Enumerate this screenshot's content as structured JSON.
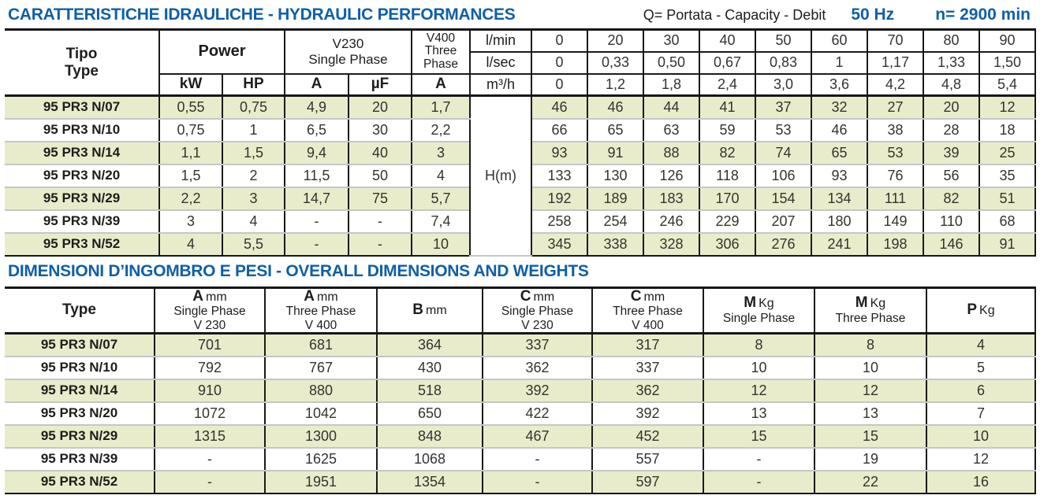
{
  "header": {
    "title": "CARATTERISTICHE IDRAULICHE - HYDRAULIC PERFORMANCES",
    "capacity_note": "Q= Portata - Capacity - Debit",
    "frequency": "50 Hz",
    "speed": "n= 2900 min"
  },
  "colors": {
    "accent_blue": "#0f5fa8",
    "row_green": "#e9ecca",
    "border_dark": "#1a1a1a"
  },
  "hydraulic_table": {
    "headers": {
      "tipo": "Tipo",
      "type": "Type",
      "power": "Power",
      "kw": "kW",
      "hp": "HP",
      "v230_line1": "V230",
      "v230_line2": "Single Phase",
      "amp": "A",
      "uf": "µF",
      "v400_line1": "V400",
      "v400_line2": "Three",
      "v400_line3": "Phase",
      "v400_amp": "A",
      "head_label": "H(m)",
      "unit_lmin": "l/min",
      "unit_lsec": "l/sec",
      "unit_m3h": "m³/h"
    },
    "flow": {
      "lmin": [
        "0",
        "20",
        "30",
        "40",
        "50",
        "60",
        "70",
        "80",
        "90"
      ],
      "lsec": [
        "0",
        "0,33",
        "0,50",
        "0,67",
        "0,83",
        "1",
        "1,17",
        "1,33",
        "1,50"
      ],
      "m3h": [
        "0",
        "1,2",
        "1,8",
        "2,4",
        "3,0",
        "3,6",
        "4,2",
        "4,8",
        "5,4"
      ]
    },
    "rows": [
      {
        "type": "95 PR3 N/07",
        "motor": [
          "0,55",
          "0,75",
          "4,9",
          "20",
          "1,7"
        ],
        "heads": [
          "46",
          "46",
          "44",
          "41",
          "37",
          "32",
          "27",
          "20",
          "12"
        ]
      },
      {
        "type": "95 PR3 N/10",
        "motor": [
          "0,75",
          "1",
          "6,5",
          "30",
          "2,2"
        ],
        "heads": [
          "66",
          "65",
          "63",
          "59",
          "53",
          "46",
          "38",
          "28",
          "18"
        ]
      },
      {
        "type": "95 PR3 N/14",
        "motor": [
          "1,1",
          "1,5",
          "9,4",
          "40",
          "3"
        ],
        "heads": [
          "93",
          "91",
          "88",
          "82",
          "74",
          "65",
          "53",
          "39",
          "25"
        ]
      },
      {
        "type": "95 PR3 N/20",
        "motor": [
          "1,5",
          "2",
          "11,5",
          "50",
          "4"
        ],
        "heads": [
          "133",
          "130",
          "126",
          "118",
          "106",
          "93",
          "76",
          "56",
          "35"
        ]
      },
      {
        "type": "95 PR3 N/29",
        "motor": [
          "2,2",
          "3",
          "14,7",
          "75",
          "5,7"
        ],
        "heads": [
          "192",
          "189",
          "183",
          "170",
          "154",
          "134",
          "111",
          "82",
          "51"
        ]
      },
      {
        "type": "95 PR3 N/39",
        "motor": [
          "3",
          "4",
          "-",
          "-",
          "7,4"
        ],
        "heads": [
          "258",
          "254",
          "246",
          "229",
          "207",
          "180",
          "149",
          "110",
          "68"
        ]
      },
      {
        "type": "95 PR3 N/52",
        "motor": [
          "4",
          "5,5",
          "-",
          "-",
          "10"
        ],
        "heads": [
          "345",
          "338",
          "328",
          "306",
          "276",
          "241",
          "198",
          "146",
          "91"
        ]
      }
    ]
  },
  "dimensions_section": {
    "title": "DIMENSIONI D’INGOMBRO E PESI - OVERALL DIMENSIONS AND WEIGHTS",
    "table": {
      "headers": [
        {
          "main": "Type",
          "unit": "",
          "line2": "",
          "line3": ""
        },
        {
          "main": "A",
          "unit": "mm",
          "line2": "Single Phase",
          "line3": "V 230"
        },
        {
          "main": "A",
          "unit": "mm",
          "line2": "Three Phase",
          "line3": "V 400"
        },
        {
          "main": "B",
          "unit": "mm",
          "line2": "",
          "line3": ""
        },
        {
          "main": "C",
          "unit": "mm",
          "line2": "Single Phase",
          "line3": "V 230"
        },
        {
          "main": "C",
          "unit": "mm",
          "line2": "Three Phase",
          "line3": "V 400"
        },
        {
          "main": "M",
          "unit": "Kg",
          "line2": "Single Phase",
          "line3": ""
        },
        {
          "main": "M",
          "unit": "Kg",
          "line2": "Three Phase",
          "line3": ""
        },
        {
          "main": "P",
          "unit": "Kg",
          "line2": "",
          "line3": ""
        }
      ],
      "rows": [
        {
          "type": "95 PR3 N/07",
          "values": [
            "701",
            "681",
            "364",
            "337",
            "317",
            "8",
            "8",
            "4"
          ]
        },
        {
          "type": "95 PR3 N/10",
          "values": [
            "792",
            "767",
            "430",
            "362",
            "337",
            "10",
            "10",
            "5"
          ]
        },
        {
          "type": "95 PR3 N/14",
          "values": [
            "910",
            "880",
            "518",
            "392",
            "362",
            "12",
            "12",
            "6"
          ]
        },
        {
          "type": "95 PR3 N/20",
          "values": [
            "1072",
            "1042",
            "650",
            "422",
            "392",
            "13",
            "13",
            "7"
          ]
        },
        {
          "type": "95 PR3 N/29",
          "values": [
            "1315",
            "1300",
            "848",
            "467",
            "452",
            "15",
            "15",
            "10"
          ]
        },
        {
          "type": "95 PR3 N/39",
          "values": [
            "-",
            "1625",
            "1068",
            "-",
            "557",
            "-",
            "19",
            "12"
          ]
        },
        {
          "type": "95 PR3 N/52",
          "values": [
            "-",
            "1951",
            "1354",
            "-",
            "597",
            "-",
            "22",
            "16"
          ]
        }
      ]
    }
  }
}
